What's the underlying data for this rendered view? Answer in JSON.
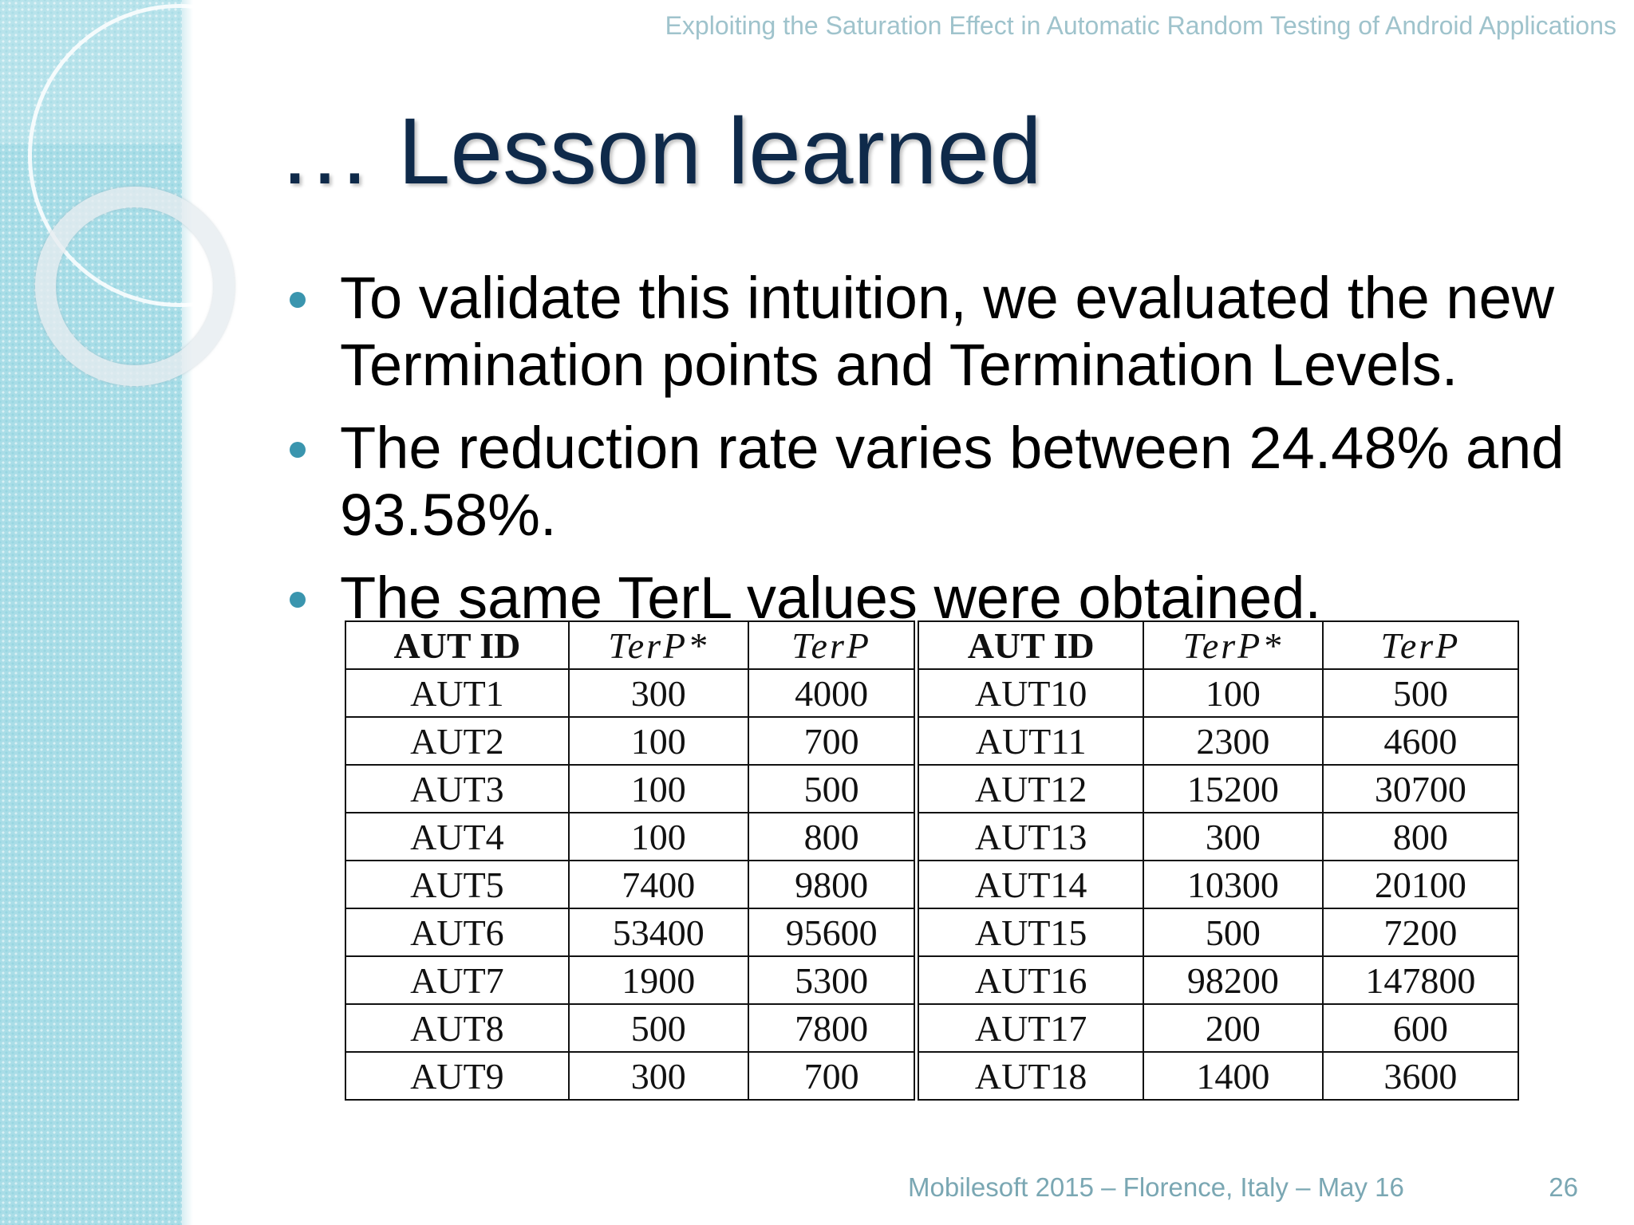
{
  "header": {
    "title": "Exploiting the Saturation Effect in Automatic Random Testing of Android Applications"
  },
  "slide": {
    "title": "… Lesson learned",
    "bullets": [
      "To validate this intuition, we evaluated the new Termination points and Termination Levels.",
      "The reduction rate varies between 24.48% and 93.58%.",
      "The same TerL values were obtained."
    ]
  },
  "table": {
    "headers": [
      "AUT ID",
      "TerP*",
      "TerP",
      "AUT ID",
      "TerP*",
      "TerP"
    ],
    "rows": [
      [
        "AUT1",
        "300",
        "4000",
        "AUT10",
        "100",
        "500"
      ],
      [
        "AUT2",
        "100",
        "700",
        "AUT11",
        "2300",
        "4600"
      ],
      [
        "AUT3",
        "100",
        "500",
        "AUT12",
        "15200",
        "30700"
      ],
      [
        "AUT4",
        "100",
        "800",
        "AUT13",
        "300",
        "800"
      ],
      [
        "AUT5",
        "7400",
        "9800",
        "AUT14",
        "10300",
        "20100"
      ],
      [
        "AUT6",
        "53400",
        "95600",
        "AUT15",
        "500",
        "7200"
      ],
      [
        "AUT7",
        "1900",
        "5300",
        "AUT16",
        "98200",
        "147800"
      ],
      [
        "AUT8",
        "500",
        "7800",
        "AUT17",
        "200",
        "600"
      ],
      [
        "AUT9",
        "300",
        "700",
        "AUT18",
        "1400",
        "3600"
      ]
    ]
  },
  "footer": {
    "text": "Mobilesoft 2015 – Florence, Italy – May 16",
    "page": "26"
  }
}
